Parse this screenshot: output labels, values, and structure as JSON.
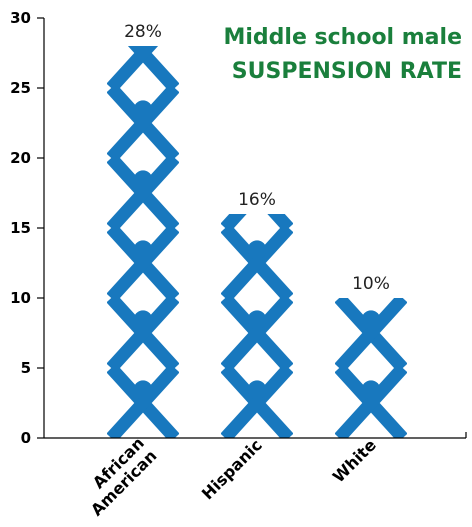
{
  "chart_data": {
    "type": "bar",
    "title_lines": [
      "Middle school male",
      "SUSPENSION RATE"
    ],
    "categories": [
      "African American",
      "Hispanic",
      "White"
    ],
    "category_label_lines": [
      [
        "African",
        "American"
      ],
      [
        "Hispanic"
      ],
      [
        "White"
      ]
    ],
    "values": [
      28,
      16,
      10
    ],
    "value_labels": [
      "28%",
      "16%",
      "10%"
    ],
    "ylim": [
      0,
      30
    ],
    "yticks": [
      0,
      5,
      10,
      15,
      20,
      25,
      30
    ],
    "ytick_labels": [
      "0",
      "5",
      "10",
      "15",
      "20",
      "25",
      "30"
    ],
    "units_per_figure": 5,
    "grid": false,
    "figure_color": "#1878be",
    "title_color": "#1a7f3c"
  }
}
